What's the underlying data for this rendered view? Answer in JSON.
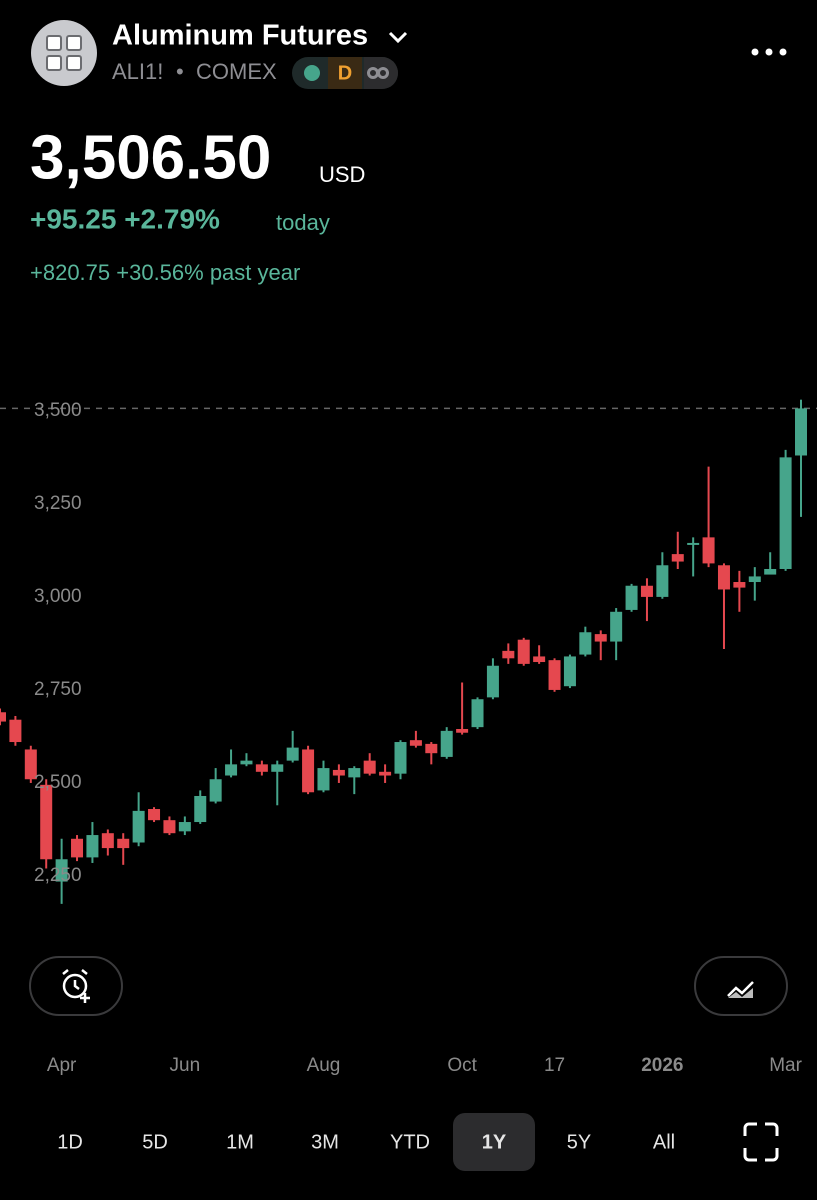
{
  "header": {
    "title": "Aluminum Futures",
    "symbol": "ALI1!",
    "separator": "•",
    "exchange": "COMEX",
    "badge_period": "D",
    "price": "3,506.50",
    "currency": "USD",
    "change_today": "+95.25 +2.79%",
    "today_label": "today",
    "change_year": "+820.75 +30.56% past year"
  },
  "timeframes": [
    "1D",
    "5D",
    "1M",
    "3M",
    "YTD",
    "1Y",
    "5Y",
    "All"
  ],
  "selected_timeframe": "1Y",
  "chart_data": {
    "type": "candlestick",
    "categories": [
      null,
      null,
      null,
      null,
      null,
      null,
      null,
      null,
      null,
      null,
      null,
      null,
      null,
      null,
      null,
      null,
      null,
      null,
      null,
      null,
      null,
      null,
      null,
      null,
      null,
      null,
      null,
      null,
      null,
      null,
      null,
      null,
      null,
      null,
      null,
      null,
      null,
      null,
      null,
      null,
      null,
      null,
      null,
      null,
      null,
      null,
      null,
      null,
      null,
      null,
      null,
      null,
      null
    ],
    "open": [
      2690,
      2670,
      2590,
      2495,
      2235,
      2350,
      2300,
      2365,
      2350,
      2340,
      2430,
      2400,
      2370,
      2395,
      2450,
      2520,
      2550,
      2550,
      2530,
      2560,
      2590,
      2480,
      2535,
      2515,
      2560,
      2530,
      2525,
      2615,
      2605,
      2570,
      2645,
      2650,
      2730,
      2855,
      2885,
      2840,
      2830,
      2760,
      2845,
      2900,
      2880,
      2965,
      3030,
      3000,
      3115,
      3140,
      3160,
      3085,
      3040,
      3040,
      3060,
      3075,
      3380
    ],
    "high": [
      2700,
      2680,
      2600,
      2510,
      2350,
      2360,
      2395,
      2375,
      2365,
      2475,
      2435,
      2410,
      2410,
      2480,
      2540,
      2590,
      2580,
      2560,
      2560,
      2640,
      2600,
      2560,
      2550,
      2545,
      2580,
      2550,
      2615,
      2640,
      2610,
      2650,
      2770,
      2730,
      2835,
      2875,
      2890,
      2870,
      2835,
      2845,
      2920,
      2910,
      2970,
      3035,
      3050,
      3120,
      3175,
      3160,
      3350,
      3090,
      3070,
      3080,
      3120,
      3395,
      3530
    ],
    "low": [
      2655,
      2600,
      2500,
      2270,
      2175,
      2290,
      2285,
      2305,
      2280,
      2330,
      2395,
      2360,
      2360,
      2390,
      2445,
      2515,
      2545,
      2520,
      2440,
      2555,
      2470,
      2475,
      2500,
      2470,
      2520,
      2500,
      2510,
      2595,
      2550,
      2565,
      2630,
      2645,
      2725,
      2820,
      2815,
      2820,
      2745,
      2755,
      2840,
      2830,
      2830,
      2960,
      2935,
      2995,
      3075,
      3055,
      3080,
      2860,
      2960,
      2990,
      3065,
      3070,
      3215
    ],
    "close": [
      2665,
      2610,
      2510,
      2295,
      2295,
      2300,
      2360,
      2325,
      2325,
      2425,
      2400,
      2365,
      2395,
      2465,
      2510,
      2550,
      2560,
      2530,
      2550,
      2595,
      2475,
      2540,
      2520,
      2540,
      2525,
      2520,
      2610,
      2600,
      2580,
      2640,
      2635,
      2725,
      2815,
      2835,
      2820,
      2825,
      2750,
      2840,
      2905,
      2880,
      2960,
      3030,
      3000,
      3085,
      3095,
      3145,
      3090,
      3020,
      3025,
      3055,
      3075,
      3375,
      3506.5
    ],
    "up_color": "#46a58b",
    "down_color": "#e5484f",
    "ylim": [
      2078,
      3556
    ],
    "yticks": [
      {
        "value": 2250,
        "label": "2,250"
      },
      {
        "value": 2500,
        "label": "2,500"
      },
      {
        "value": 2750,
        "label": "2,750"
      },
      {
        "value": 3000,
        "label": "3,000"
      },
      {
        "value": 3250,
        "label": "3,250"
      },
      {
        "value": 3500,
        "label": "3,500"
      }
    ],
    "xticks": [
      {
        "value": 4,
        "label": "Apr"
      },
      {
        "value": 12,
        "label": "Jun"
      },
      {
        "value": 21,
        "label": "Aug"
      },
      {
        "value": 30,
        "label": "Oct"
      },
      {
        "value": 36,
        "label": "17"
      },
      {
        "value": 43,
        "label": "2026"
      },
      {
        "value": 51,
        "label": "Mar"
      }
    ],
    "price_line": 3506.5
  }
}
